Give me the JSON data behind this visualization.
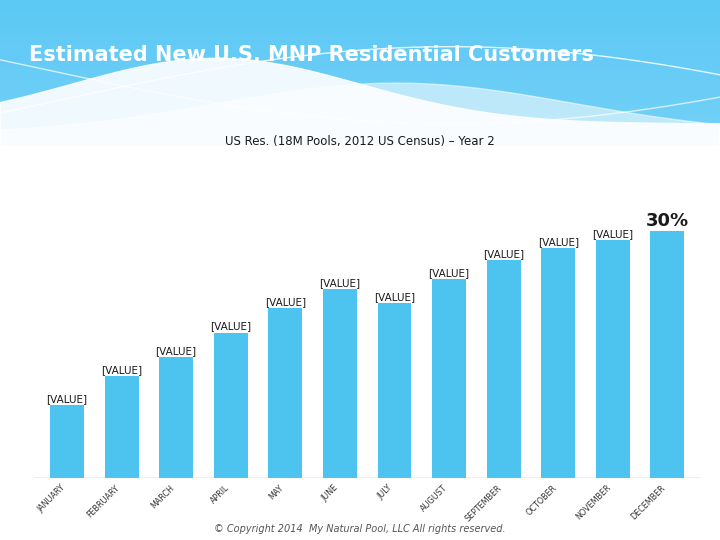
{
  "title": "Estimated New U.S. MNP Residential Customers",
  "subtitle": "US Res. (18M Pools, 2012 US Census) – Year 2",
  "footer": "© Copyright 2014  My Natural Pool, LLC All rights reserved.",
  "bar_color": "#4DC3F0",
  "bar_values": [
    3.0,
    4.2,
    5.0,
    6.0,
    7.0,
    7.8,
    7.2,
    8.2,
    9.0,
    9.5,
    9.8,
    10.2
  ],
  "bar_label": "[VALUE]",
  "last_bar_label": "30%",
  "months": [
    "JANUARY",
    "FEBRUARY",
    "MARCH",
    "APRIL",
    "MAY",
    "JUNE",
    "JULY",
    "AUGUST",
    "SEPTEMBER",
    "OCTOBER",
    "NOVEMBER",
    "DECEMBER"
  ],
  "header_color_left": "#5BC8F5",
  "header_color_right": "#85CEED",
  "bg_white": "#FFFFFF",
  "title_color": "#FFFFFF",
  "subtitle_color": "#1A1A1A",
  "label_color": "#1A1A1A",
  "axis_line_color": "#AAAAAA",
  "figure_width": 7.2,
  "figure_height": 5.4
}
